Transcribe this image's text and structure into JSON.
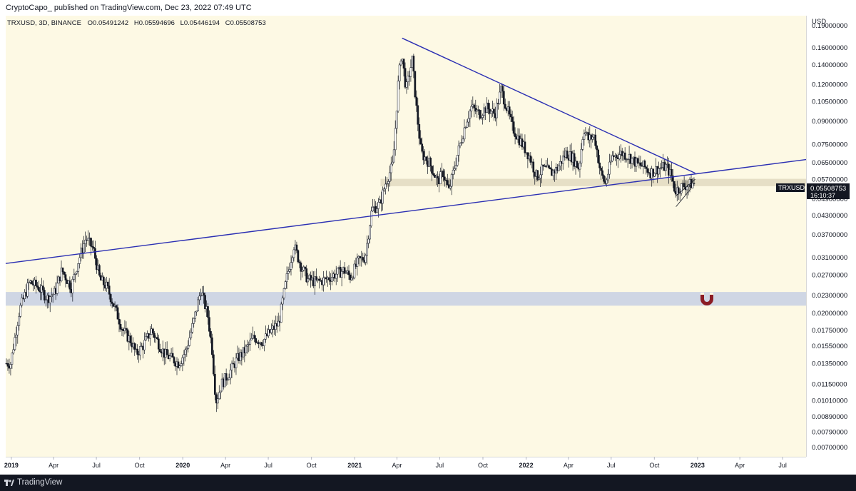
{
  "header": {
    "publisher_text": "CryptoCapo_ published on TradingView.com, Dec 23, 2022 07:49 UTC"
  },
  "legend": {
    "symbol_line": "TRXUSD, 3D, BINANCE",
    "open": "O0.05491242",
    "high": "H0.05594696",
    "low": "L0.05446194",
    "close": "C0.05508753"
  },
  "price_tag": {
    "symbol": "TRXUSD",
    "price": "0.05508753",
    "countdown": "16:10:37"
  },
  "footer": {
    "brand": "TradingView"
  },
  "colors": {
    "chart_bg": "#fdf9e4",
    "trendline": "#2b2fb3",
    "support_zone": "#cfd6e4",
    "resistance_zone": "#e6dfc6",
    "candle_up": "#ffffff",
    "candle_down": "#131722",
    "magnet_icon": "#8b1c24",
    "price_tag_bg": "#131722"
  },
  "chart_data": {
    "type": "candlestick",
    "currency": "USD",
    "scale": "log",
    "ylim": [
      0.0065,
      0.205
    ],
    "xlim": [
      "2018-12-20",
      "2023-08-20"
    ],
    "yticks": [
      "0.19000000",
      "0.16000000",
      "0.14000000",
      "0.12000000",
      "0.10500000",
      "0.09000000",
      "0.07500000",
      "0.06500000",
      "0.05700000",
      "0.04900000",
      "0.04300000",
      "0.03700000",
      "0.03100000",
      "0.02700000",
      "0.02300000",
      "0.02000000",
      "0.01750000",
      "0.01550000",
      "0.01350000",
      "0.01150000",
      "0.01010000",
      "0.00890000",
      "0.00790000",
      "0.00700000"
    ],
    "xticks": [
      {
        "label": "2019",
        "date": "2019-01-01",
        "bold": true
      },
      {
        "label": "Apr",
        "date": "2019-04-01"
      },
      {
        "label": "Jul",
        "date": "2019-07-01"
      },
      {
        "label": "Oct",
        "date": "2019-10-01"
      },
      {
        "label": "2020",
        "date": "2020-01-01",
        "bold": true
      },
      {
        "label": "Apr",
        "date": "2020-04-01"
      },
      {
        "label": "Jul",
        "date": "2020-07-01"
      },
      {
        "label": "Oct",
        "date": "2020-10-01"
      },
      {
        "label": "2021",
        "date": "2021-01-01",
        "bold": true
      },
      {
        "label": "Apr",
        "date": "2021-04-01"
      },
      {
        "label": "Jul",
        "date": "2021-07-01"
      },
      {
        "label": "Oct",
        "date": "2021-10-01"
      },
      {
        "label": "2022",
        "date": "2022-01-01",
        "bold": true
      },
      {
        "label": "Apr",
        "date": "2022-04-01"
      },
      {
        "label": "Jul",
        "date": "2022-07-01"
      },
      {
        "label": "Oct",
        "date": "2022-10-01"
      },
      {
        "label": "2023",
        "date": "2023-01-01",
        "bold": true
      },
      {
        "label": "Apr",
        "date": "2023-04-01"
      },
      {
        "label": "Jul",
        "date": "2023-07-01"
      }
    ],
    "close_path": [
      [
        "2018-12-20",
        0.0135
      ],
      [
        "2019-01-01",
        0.0135
      ],
      [
        "2019-01-20",
        0.0205
      ],
      [
        "2019-02-10",
        0.0255
      ],
      [
        "2019-03-01",
        0.0245
      ],
      [
        "2019-03-20",
        0.0225
      ],
      [
        "2019-04-05",
        0.0235
      ],
      [
        "2019-04-20",
        0.028
      ],
      [
        "2019-05-10",
        0.0245
      ],
      [
        "2019-05-25",
        0.03
      ],
      [
        "2019-06-10",
        0.036
      ],
      [
        "2019-06-26",
        0.033
      ],
      [
        "2019-07-10",
        0.026
      ],
      [
        "2019-07-25",
        0.0245
      ],
      [
        "2019-08-10",
        0.021
      ],
      [
        "2019-08-28",
        0.0175
      ],
      [
        "2019-09-15",
        0.016
      ],
      [
        "2019-09-25",
        0.0145
      ],
      [
        "2019-10-10",
        0.0155
      ],
      [
        "2019-10-28",
        0.0175
      ],
      [
        "2019-11-10",
        0.016
      ],
      [
        "2019-11-25",
        0.0145
      ],
      [
        "2019-12-10",
        0.014
      ],
      [
        "2019-12-25",
        0.0135
      ],
      [
        "2020-01-10",
        0.015
      ],
      [
        "2020-01-25",
        0.0185
      ],
      [
        "2020-02-10",
        0.024
      ],
      [
        "2020-02-25",
        0.0195
      ],
      [
        "2020-03-05",
        0.015
      ],
      [
        "2020-03-13",
        0.01
      ],
      [
        "2020-03-25",
        0.0115
      ],
      [
        "2020-04-10",
        0.0125
      ],
      [
        "2020-04-28",
        0.014
      ],
      [
        "2020-05-15",
        0.015
      ],
      [
        "2020-06-01",
        0.0165
      ],
      [
        "2020-06-20",
        0.016
      ],
      [
        "2020-07-10",
        0.0175
      ],
      [
        "2020-07-25",
        0.0185
      ],
      [
        "2020-08-10",
        0.026
      ],
      [
        "2020-08-26",
        0.034
      ],
      [
        "2020-09-10",
        0.029
      ],
      [
        "2020-09-25",
        0.026
      ],
      [
        "2020-10-15",
        0.0255
      ],
      [
        "2020-11-01",
        0.026
      ],
      [
        "2020-11-20",
        0.027
      ],
      [
        "2020-12-10",
        0.028
      ],
      [
        "2020-12-25",
        0.0265
      ],
      [
        "2021-01-10",
        0.03
      ],
      [
        "2021-01-25",
        0.031
      ],
      [
        "2021-02-08",
        0.045
      ],
      [
        "2021-02-25",
        0.047
      ],
      [
        "2021-03-10",
        0.056
      ],
      [
        "2021-03-25",
        0.064
      ],
      [
        "2021-04-05",
        0.12
      ],
      [
        "2021-04-12",
        0.155
      ],
      [
        "2021-04-22",
        0.115
      ],
      [
        "2021-05-05",
        0.145
      ],
      [
        "2021-05-15",
        0.095
      ],
      [
        "2021-05-24",
        0.07
      ],
      [
        "2021-06-10",
        0.065
      ],
      [
        "2021-06-28",
        0.056
      ],
      [
        "2021-07-10",
        0.06
      ],
      [
        "2021-07-22",
        0.052
      ],
      [
        "2021-08-10",
        0.07
      ],
      [
        "2021-08-28",
        0.09
      ],
      [
        "2021-09-08",
        0.1
      ],
      [
        "2021-09-25",
        0.095
      ],
      [
        "2021-10-10",
        0.1
      ],
      [
        "2021-10-28",
        0.095
      ],
      [
        "2021-11-10",
        0.115
      ],
      [
        "2021-11-22",
        0.1
      ],
      [
        "2021-12-05",
        0.085
      ],
      [
        "2021-12-25",
        0.075
      ],
      [
        "2022-01-10",
        0.068
      ],
      [
        "2022-01-25",
        0.058
      ],
      [
        "2022-02-08",
        0.062
      ],
      [
        "2022-02-25",
        0.06
      ],
      [
        "2022-03-10",
        0.062
      ],
      [
        "2022-03-28",
        0.07
      ],
      [
        "2022-04-10",
        0.068
      ],
      [
        "2022-04-25",
        0.062
      ],
      [
        "2022-05-05",
        0.085
      ],
      [
        "2022-05-15",
        0.078
      ],
      [
        "2022-05-28",
        0.08
      ],
      [
        "2022-06-10",
        0.06
      ],
      [
        "2022-06-20",
        0.055
      ],
      [
        "2022-07-05",
        0.068
      ],
      [
        "2022-07-25",
        0.07
      ],
      [
        "2022-08-10",
        0.068
      ],
      [
        "2022-08-28",
        0.064
      ],
      [
        "2022-09-10",
        0.063
      ],
      [
        "2022-09-25",
        0.06
      ],
      [
        "2022-10-10",
        0.062
      ],
      [
        "2022-10-28",
        0.063
      ],
      [
        "2022-11-09",
        0.058
      ],
      [
        "2022-11-15",
        0.052
      ],
      [
        "2022-12-01",
        0.054
      ],
      [
        "2022-12-23",
        0.0551
      ]
    ],
    "annotations": [
      {
        "name": "rising-trendline",
        "type": "line",
        "points": [
          [
            "2018-12-20",
            0.0295
          ],
          [
            "2023-08-20",
            0.0665
          ]
        ]
      },
      {
        "name": "descending-trendline",
        "type": "line",
        "points": [
          [
            "2021-04-12",
            0.172
          ],
          [
            "2022-12-27",
            0.0598
          ]
        ]
      },
      {
        "name": "support-zone",
        "type": "zone",
        "from": 0.0212,
        "to": 0.0236
      },
      {
        "name": "resistance-zone",
        "type": "zone",
        "from": 0.054,
        "to": 0.0572,
        "start": "2021-02-25"
      },
      {
        "name": "bear-flag-channel-lower",
        "type": "line",
        "points": [
          [
            "2022-11-16",
            0.046
          ],
          [
            "2022-12-18",
            0.053
          ]
        ]
      },
      {
        "name": "bear-flag-channel-upper",
        "type": "line",
        "points": [
          [
            "2022-11-16",
            0.05
          ],
          [
            "2022-12-27",
            0.057
          ]
        ]
      }
    ]
  }
}
